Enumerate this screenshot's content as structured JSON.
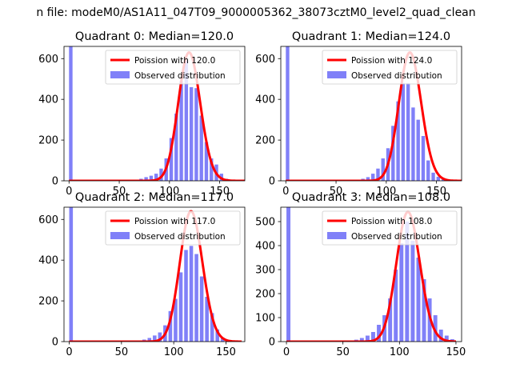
{
  "figure": {
    "suptitle": "n file: modeM0/AS1A11_047T09_9000005362_38073cztM0_level2_quad_clean"
  },
  "colors": {
    "hist": "#8080f8",
    "fit": "#ff0000",
    "axis": "#000000"
  },
  "chart_data": [
    {
      "type": "bar",
      "title": "Quadrant 0: Median=120.0",
      "xlim": [
        -5,
        175
      ],
      "ylim": [
        0,
        660
      ],
      "xticks": [
        0,
        50,
        100,
        150
      ],
      "yticks": [
        0,
        200,
        400,
        600
      ],
      "legend": [
        "Poission with 120.0",
        "Observed distribution"
      ],
      "legend_position": "top-right",
      "series": [
        {
          "name": "Observed distribution",
          "type": "histogram",
          "bin_width": 3.5,
          "x": [
            0,
            70,
            75,
            80,
            85,
            90,
            95,
            100,
            105,
            110,
            115,
            120,
            125,
            130,
            135,
            140,
            145,
            150,
            155
          ],
          "values": [
            660,
            10,
            18,
            25,
            35,
            60,
            110,
            210,
            330,
            490,
            590,
            460,
            455,
            320,
            190,
            110,
            80,
            35,
            10
          ]
        },
        {
          "name": "Poission with 120.0",
          "type": "poisson",
          "mean": 120.0,
          "peak": 630,
          "x_range": [
            0,
            175
          ]
        }
      ]
    },
    {
      "type": "bar",
      "title": "Quadrant 1: Median=124.0",
      "xlim": [
        -5,
        175
      ],
      "ylim": [
        0,
        660
      ],
      "xticks": [
        0,
        50,
        100,
        150
      ],
      "yticks": [
        0,
        200,
        400,
        600
      ],
      "legend": [
        "Poission with 124.0",
        "Observed distribution"
      ],
      "legend_position": "top-right",
      "series": [
        {
          "name": "Observed distribution",
          "type": "histogram",
          "bin_width": 3.5,
          "x": [
            0,
            75,
            80,
            85,
            90,
            95,
            100,
            105,
            110,
            115,
            120,
            125,
            130,
            135,
            140,
            145,
            150,
            155
          ],
          "values": [
            660,
            10,
            18,
            35,
            60,
            110,
            160,
            270,
            390,
            480,
            480,
            360,
            300,
            220,
            100,
            40,
            20,
            8
          ]
        },
        {
          "name": "Poission with 124.0",
          "type": "poisson",
          "mean": 124.0,
          "peak": 630,
          "x_range": [
            0,
            175
          ]
        }
      ]
    },
    {
      "type": "bar",
      "title": "Quadrant 2: Median=117.0",
      "xlim": [
        -5,
        168
      ],
      "ylim": [
        0,
        660
      ],
      "xticks": [
        0,
        50,
        100,
        150
      ],
      "yticks": [
        0,
        200,
        400,
        600
      ],
      "legend": [
        "Poission with 117.0",
        "Observed distribution"
      ],
      "legend_position": "top-right",
      "series": [
        {
          "name": "Observed distribution",
          "type": "histogram",
          "bin_width": 3.5,
          "x": [
            0,
            70,
            75,
            80,
            85,
            90,
            95,
            100,
            105,
            110,
            115,
            120,
            125,
            130,
            135,
            140,
            145
          ],
          "values": [
            660,
            10,
            18,
            30,
            45,
            80,
            150,
            210,
            340,
            450,
            470,
            430,
            320,
            220,
            140,
            60,
            20
          ]
        },
        {
          "name": "Poission with 117.0",
          "type": "poisson",
          "mean": 117.0,
          "peak": 640,
          "x_range": [
            0,
            165
          ]
        }
      ]
    },
    {
      "type": "bar",
      "title": "Quadrant 3: Median=108.0",
      "xlim": [
        -5,
        155
      ],
      "ylim": [
        0,
        560
      ],
      "xticks": [
        0,
        50,
        100,
        150
      ],
      "yticks": [
        0,
        100,
        200,
        300,
        400,
        500
      ],
      "legend": [
        "Poission with 108.0",
        "Observed distribution"
      ],
      "legend_position": "top-right",
      "series": [
        {
          "name": "Observed distribution",
          "type": "histogram",
          "bin_width": 3.5,
          "x": [
            0,
            60,
            65,
            70,
            75,
            80,
            85,
            90,
            95,
            100,
            105,
            110,
            115,
            120,
            125,
            130,
            135,
            140,
            145
          ],
          "values": [
            560,
            8,
            15,
            25,
            40,
            70,
            110,
            180,
            300,
            410,
            500,
            420,
            350,
            260,
            180,
            110,
            50,
            25,
            10
          ]
        },
        {
          "name": "Poission with 108.0",
          "type": "poisson",
          "mean": 108.0,
          "peak": 540,
          "x_range": [
            0,
            150
          ]
        }
      ]
    }
  ]
}
